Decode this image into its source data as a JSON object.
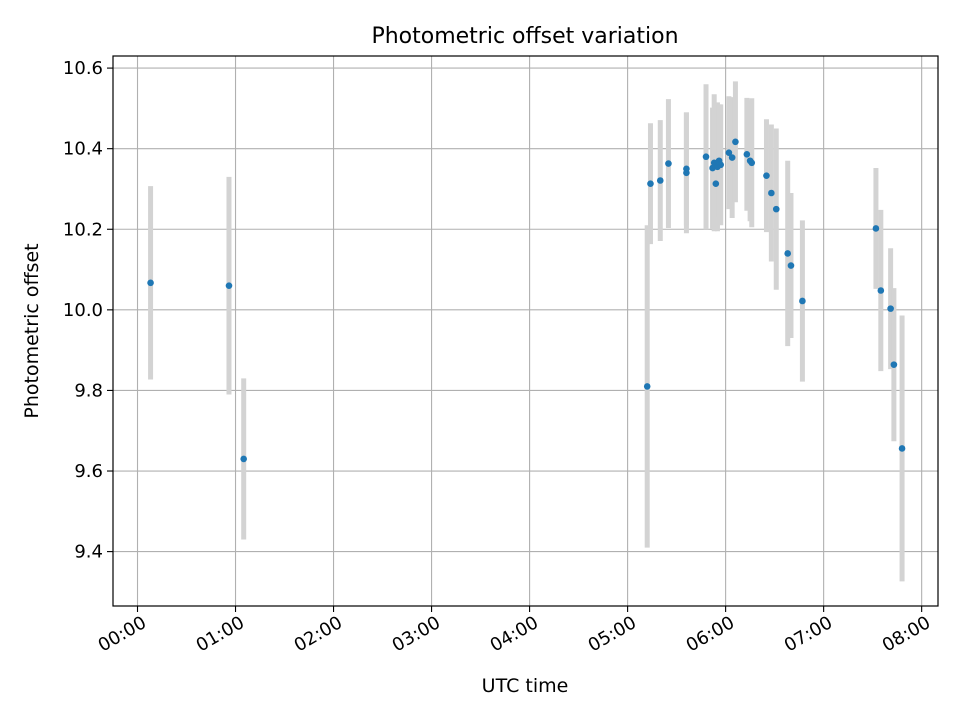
{
  "chart_data": {
    "type": "scatter",
    "title": "Photometric offset variation",
    "xlabel": "UTC time",
    "ylabel": "Photometric offset",
    "x_unit": "time of day (HH:MM UTC)",
    "xlim": [
      "-00:15",
      "08:10"
    ],
    "ylim": [
      9.265,
      10.63
    ],
    "xticks": [
      "00:00",
      "01:00",
      "02:00",
      "03:00",
      "04:00",
      "05:00",
      "06:00",
      "07:00",
      "08:00"
    ],
    "yticks": [
      9.4,
      9.6,
      9.8,
      10.0,
      10.2,
      10.4,
      10.6
    ],
    "ytick_labels": [
      "9.4",
      "9.6",
      "9.8",
      "10.0",
      "10.2",
      "10.4",
      "10.6"
    ],
    "grid": true,
    "legend": "none",
    "colors": {
      "point": "#1f77b4",
      "errorbar": "#d3d3d3",
      "grid": "#b0b0b0",
      "axes": "#000000"
    },
    "series": [
      {
        "points": [
          {
            "x": "00:08",
            "y": 10.067,
            "yerr": 0.24
          },
          {
            "x": "00:56",
            "y": 10.06,
            "yerr": 0.27
          },
          {
            "x": "01:05",
            "y": 9.63,
            "yerr": 0.2
          },
          {
            "x": "05:12",
            "y": 9.81,
            "yerr": 0.4
          },
          {
            "x": "05:14",
            "y": 10.313,
            "yerr": 0.15
          },
          {
            "x": "05:20",
            "y": 10.321,
            "yerr": 0.15
          },
          {
            "x": "05:25",
            "y": 10.363,
            "yerr": 0.16
          },
          {
            "x": "05:36",
            "y": 10.34,
            "yerr": 0.15
          },
          {
            "x": "05:36",
            "y": 10.35,
            "yerr": 0.14
          },
          {
            "x": "05:48",
            "y": 10.38,
            "yerr": 0.18
          },
          {
            "x": "05:52",
            "y": 10.352,
            "yerr": 0.15
          },
          {
            "x": "05:53",
            "y": 10.365,
            "yerr": 0.17
          },
          {
            "x": "05:54",
            "y": 10.313,
            "yerr": 0.11
          },
          {
            "x": "05:55",
            "y": 10.355,
            "yerr": 0.16
          },
          {
            "x": "05:56",
            "y": 10.37,
            "yerr": 0.14
          },
          {
            "x": "05:57",
            "y": 10.36,
            "yerr": 0.15
          },
          {
            "x": "06:02",
            "y": 10.39,
            "yerr": 0.14
          },
          {
            "x": "06:04",
            "y": 10.378,
            "yerr": 0.15
          },
          {
            "x": "06:06",
            "y": 10.417,
            "yerr": 0.15
          },
          {
            "x": "06:13",
            "y": 10.386,
            "yerr": 0.14
          },
          {
            "x": "06:15",
            "y": 10.37,
            "yerr": 0.15
          },
          {
            "x": "06:16",
            "y": 10.365,
            "yerr": 0.16
          },
          {
            "x": "06:25",
            "y": 10.333,
            "yerr": 0.14
          },
          {
            "x": "06:28",
            "y": 10.29,
            "yerr": 0.17
          },
          {
            "x": "06:31",
            "y": 10.25,
            "yerr": 0.2
          },
          {
            "x": "06:38",
            "y": 10.14,
            "yerr": 0.23
          },
          {
            "x": "06:40",
            "y": 10.11,
            "yerr": 0.18
          },
          {
            "x": "06:47",
            "y": 10.022,
            "yerr": 0.2
          },
          {
            "x": "07:32",
            "y": 10.202,
            "yerr": 0.15
          },
          {
            "x": "07:35",
            "y": 10.048,
            "yerr": 0.2
          },
          {
            "x": "07:41",
            "y": 10.003,
            "yerr": 0.15
          },
          {
            "x": "07:43",
            "y": 9.864,
            "yerr": 0.19
          },
          {
            "x": "07:48",
            "y": 9.656,
            "yerr": 0.33
          }
        ]
      }
    ]
  }
}
